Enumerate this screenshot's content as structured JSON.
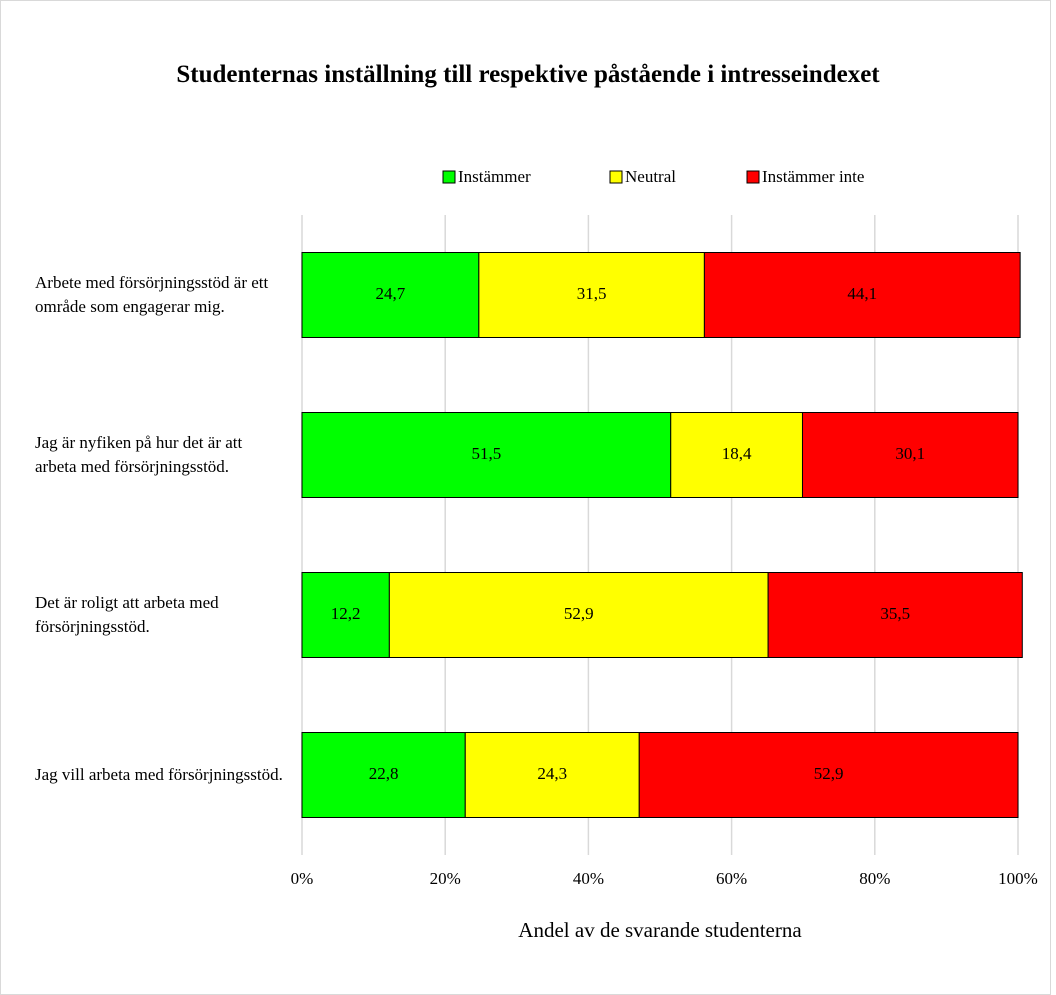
{
  "chart_data": {
    "type": "stacked_bar_horizontal",
    "title": "Studenternas inställning till respektive påstående i intresseindexet",
    "x_label": "Andel av de svarande studenterna",
    "categories": [
      "Arbete med försörjningsstöd är ett område som engagerar mig.",
      "Jag är nyfiken på hur det är att arbeta med försörjningsstöd.",
      "Det är roligt att arbeta med försörjningsstöd.",
      "Jag vill arbeta med försörjningsstöd."
    ],
    "series": [
      {
        "name": "Instämmer",
        "color": "#00ff00",
        "values": [
          24.7,
          51.5,
          12.2,
          22.8
        ],
        "value_labels": [
          "24,7",
          "51,5",
          "12,2",
          "22,8"
        ]
      },
      {
        "name": "Neutral",
        "color": "#ffff00",
        "values": [
          31.5,
          18.4,
          52.9,
          24.3
        ],
        "value_labels": [
          "31,5",
          "18,4",
          "52,9",
          "24,3"
        ]
      },
      {
        "name": "Instämmer inte",
        "color": "#ff0000",
        "values": [
          44.1,
          30.1,
          35.5,
          52.9
        ],
        "value_labels": [
          "44,1",
          "30,1",
          "35,5",
          "52,9"
        ]
      }
    ],
    "xlim": [
      0,
      100
    ],
    "xticks": [
      {
        "value": 0,
        "label": "0%"
      },
      {
        "value": 20,
        "label": "20%"
      },
      {
        "value": 40,
        "label": "40%"
      },
      {
        "value": 60,
        "label": "60%"
      },
      {
        "value": 80,
        "label": "80%"
      },
      {
        "value": 100,
        "label": "100%"
      }
    ],
    "grid": true,
    "legend": "top"
  }
}
